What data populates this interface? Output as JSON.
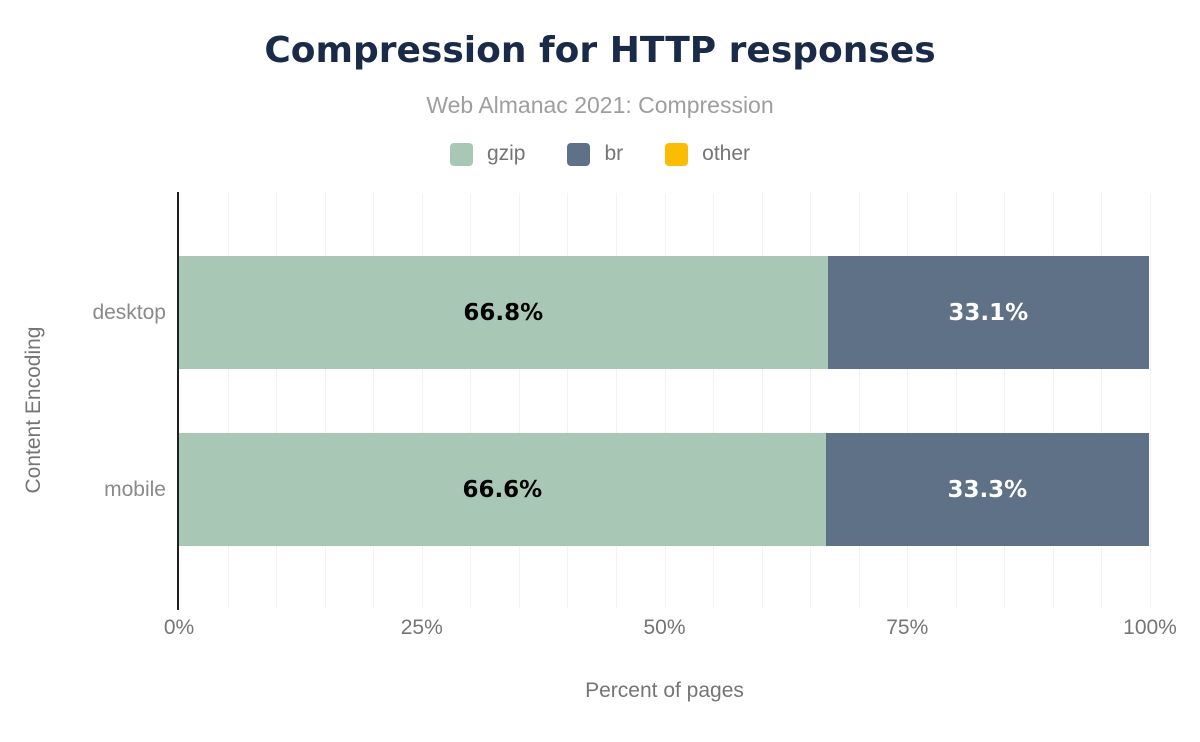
{
  "header": {
    "title": "Compression for HTTP responses",
    "subtitle": "Web Almanac 2021: Compression"
  },
  "legend": {
    "items": [
      {
        "label": "gzip",
        "color": "#a8c8b5"
      },
      {
        "label": "br",
        "color": "#5f7186"
      },
      {
        "label": "other",
        "color": "#fbbc04"
      }
    ]
  },
  "chart_data": {
    "type": "bar",
    "orientation": "horizontal",
    "stacked": true,
    "title": "Compression for HTTP responses",
    "subtitle": "Web Almanac 2021: Compression",
    "categories": [
      "desktop",
      "mobile"
    ],
    "series": [
      {
        "name": "gzip",
        "color": "#a8c8b5",
        "label_color": "#000000",
        "values": [
          66.8,
          66.6
        ]
      },
      {
        "name": "br",
        "color": "#5f7186",
        "label_color": "#ffffff",
        "values": [
          33.1,
          33.3
        ]
      },
      {
        "name": "other",
        "color": "#fbbc04",
        "label_color": "#000000",
        "values": [
          null,
          null
        ]
      }
    ],
    "data_labels": [
      [
        "66.8%",
        "33.1%"
      ],
      [
        "66.6%",
        "33.3%"
      ]
    ],
    "xlabel": "Percent of pages",
    "ylabel": "Content Encoding",
    "xlim": [
      0,
      100
    ],
    "x_ticks": [
      "0%",
      "25%",
      "50%",
      "75%",
      "100%"
    ],
    "x_tick_values": [
      0,
      25,
      50,
      75,
      100
    ],
    "gridline_step": 5,
    "grid": true,
    "legend_position": "top"
  },
  "colors": {
    "title": "#1a2b49",
    "subtitle": "#9e9e9e",
    "axis_text": "#757575",
    "category_text": "#8a8a8a",
    "axis_line": "#1f1f1f",
    "gridline": "#f2f2f2",
    "background": "#ffffff"
  }
}
